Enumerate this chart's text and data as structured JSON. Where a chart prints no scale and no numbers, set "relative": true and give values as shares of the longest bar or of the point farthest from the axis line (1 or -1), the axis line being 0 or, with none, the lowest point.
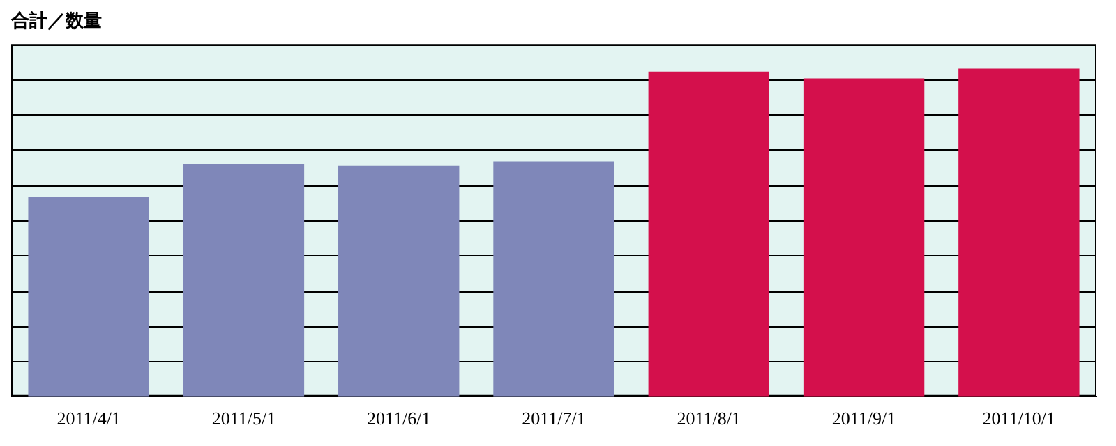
{
  "chart_data": {
    "type": "bar",
    "title": "合計／数量",
    "relative": true,
    "grid": "y",
    "categories": [
      "2011/4/1",
      "2011/5/1",
      "2011/6/1",
      "2011/7/1",
      "2011/8/1",
      "2011/9/1",
      "2011/10/1"
    ],
    "values": [
      0.609,
      0.708,
      0.704,
      0.717,
      0.991,
      0.97,
      1
    ],
    "colors": [
      "#7f87b9",
      "#7f87b9",
      "#7f87b9",
      "#7f87b9",
      "#d4104c",
      "#d4104c",
      "#d4104c"
    ]
  }
}
